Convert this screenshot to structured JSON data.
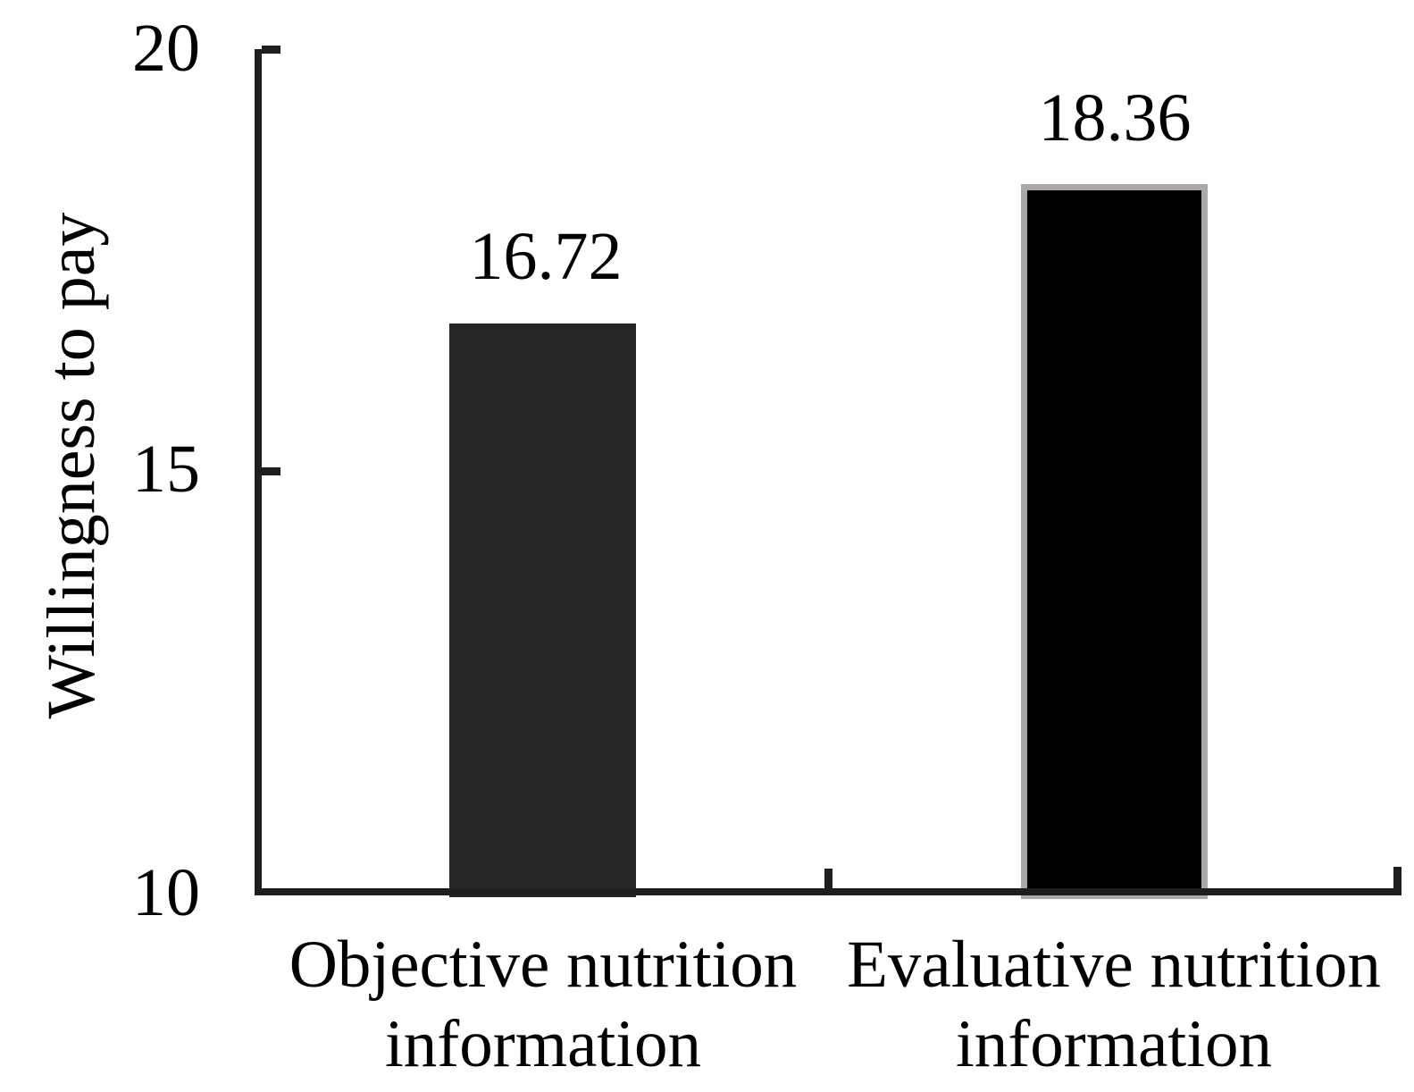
{
  "chart_data": {
    "type": "bar",
    "title": "",
    "xlabel": "",
    "ylabel": "Willingness to pay",
    "categories": [
      "Objective nutrition information",
      "Evaluative nutrition information"
    ],
    "category_lines": [
      [
        "Objective nutrition",
        "information"
      ],
      [
        "Evaluative nutrition",
        "information"
      ]
    ],
    "values": [
      16.72,
      18.36
    ],
    "value_labels": [
      "16.72",
      "18.36"
    ],
    "ylim": [
      10,
      20
    ],
    "yticks": [
      10,
      15,
      20
    ],
    "ytick_labels": [
      "10",
      "15",
      "20"
    ],
    "grid": false,
    "legend_position": "none",
    "colors": {
      "background": "#ffffff",
      "axis": "#1e1e1e",
      "text": "#000000",
      "bar_objective_fill": "#262626",
      "bar_evaluative_fill": "#000000",
      "bar_evaluative_border": "#aca8a8"
    }
  }
}
